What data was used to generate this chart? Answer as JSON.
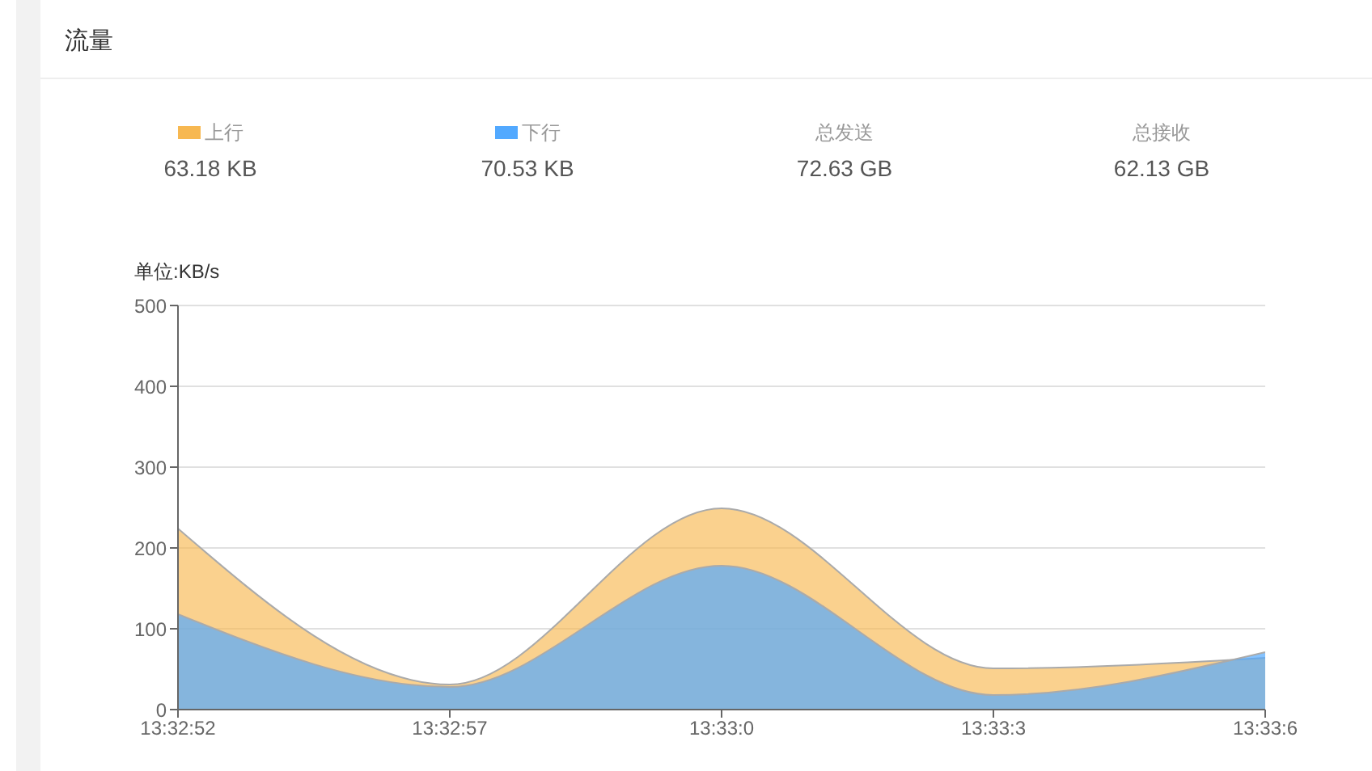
{
  "chart_data": {
    "type": "area",
    "title": "流量",
    "ylabel": "单位:KB/s",
    "categories": [
      "13:32:52",
      "13:32:57",
      "13:33:0",
      "13:33:3",
      "13:33:6"
    ],
    "series": [
      {
        "name": "上行",
        "color": "#f7b851",
        "values": [
          224,
          31,
          249,
          51,
          64
        ]
      },
      {
        "name": "下行",
        "color": "#52a9ff",
        "values": [
          118,
          28,
          178,
          18,
          71
        ]
      }
    ],
    "annotations": [
      "63.18 KB",
      "70.53 KB",
      "总发送",
      "72.63 GB",
      "总接收",
      "62.13 GB"
    ],
    "ylim": [
      0,
      500
    ],
    "yticks": [
      0,
      100,
      200,
      300,
      400,
      500
    ],
    "grid": "y",
    "legend": "top",
    "marker": "none"
  }
}
